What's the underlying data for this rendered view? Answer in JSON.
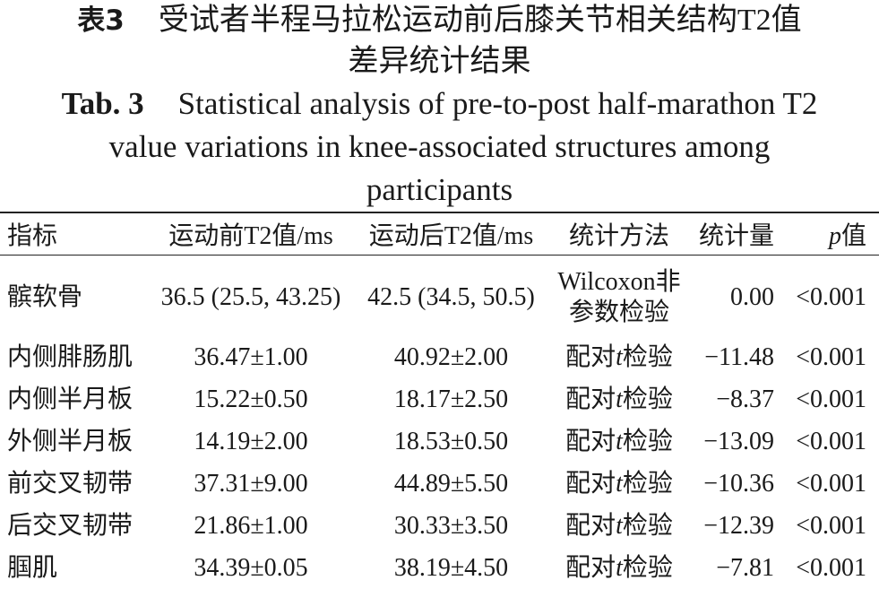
{
  "caption_cn": {
    "label": "表3",
    "lines": [
      "受试者半程马拉松运动前后膝关节相关结构T2值",
      "差异统计结果"
    ]
  },
  "caption_en": {
    "label": "Tab. 3",
    "lines": [
      "Statistical analysis of pre-to-post half-marathon T2",
      "value variations in knee-associated structures among",
      "participants"
    ]
  },
  "table": {
    "header": [
      "指标",
      "运动前T2值/ms",
      "运动后T2值/ms",
      "统计方法",
      "统计量",
      "p值"
    ],
    "rows": [
      [
        "髌软骨",
        "36.5 (25.5, 43.25)",
        "42.5 (34.5, 50.5)",
        "Wilcoxon非参数检验",
        "0.00",
        "<0.001"
      ],
      [
        "内侧腓肠肌",
        "36.47±1.00",
        "40.92±2.00",
        "配对t检验",
        "−11.48",
        "<0.001"
      ],
      [
        "内侧半月板",
        "15.22±0.50",
        "18.17±2.50",
        "配对t检验",
        "−8.37",
        "<0.001"
      ],
      [
        "外侧半月板",
        "14.19±2.00",
        "18.53±0.50",
        "配对t检验",
        "−13.09",
        "<0.001"
      ],
      [
        "前交叉韧带",
        "37.31±9.00",
        "44.89±5.50",
        "配对t检验",
        "−10.36",
        "<0.001"
      ],
      [
        "后交叉韧带",
        "21.86±1.00",
        "30.33±3.50",
        "配对t检验",
        "−12.39",
        "<0.001"
      ],
      [
        "腘肌",
        "34.39±0.05",
        "38.19±4.50",
        "配对t检验",
        "−7.81",
        "<0.001"
      ]
    ]
  }
}
